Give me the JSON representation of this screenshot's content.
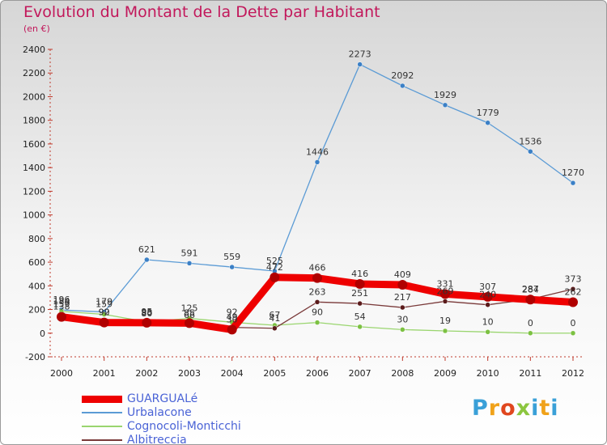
{
  "title": "Evolution du Montant de la Dette par Habitant",
  "subtitle": "(en €)",
  "brand": {
    "letters": [
      "P",
      "r",
      "o",
      "x",
      "i",
      "t",
      "i"
    ],
    "colors": [
      "#3aa0d8",
      "#f0a21a",
      "#e0471f",
      "#8cc63f",
      "#3aa0d8",
      "#f0a21a",
      "#3aa0d8"
    ]
  },
  "chart_data": {
    "type": "line",
    "title": "Evolution du Montant de la Dette par Habitant",
    "ylabel": "(en €)",
    "xlabel": "",
    "x": [
      "2000",
      "2001",
      "2002",
      "2003",
      "2004",
      "2005",
      "2006",
      "2007",
      "2008",
      "2009",
      "2010",
      "2011",
      "2012"
    ],
    "ylim": [
      -200,
      2400
    ],
    "yticks": [
      "-200",
      "0",
      "200",
      "400",
      "600",
      "800",
      "1000",
      "1200",
      "1400",
      "1600",
      "1800",
      "2000",
      "2200",
      "2400"
    ],
    "grid": false,
    "legend_position": "bottom-left",
    "series": [
      {
        "name": "Urbalacone",
        "color": "#5b9bd5",
        "marker": "#3b80c6",
        "width": 1.3,
        "values": [
          196,
          179,
          621,
          591,
          559,
          525,
          1446,
          2273,
          2092,
          1929,
          1779,
          1536,
          1270
        ],
        "labels": [
          "196",
          "179",
          "621",
          "591",
          "559",
          "525",
          "1446",
          "2273",
          "2092",
          "1929",
          "1779",
          "1536",
          "1270"
        ]
      },
      {
        "name": "Cognocoli-Monticchi",
        "color": "#9ad56f",
        "marker": "#7cc142",
        "width": 1.3,
        "values": [
          184,
          159,
          95,
          125,
          92,
          67,
          90,
          54,
          30,
          19,
          10,
          0,
          0
        ],
        "labels": [
          "184",
          "159",
          "95",
          "125",
          "92",
          "67",
          "90",
          "54",
          "30",
          "19",
          "10",
          "0",
          "0"
        ]
      },
      {
        "name": "Albitreccia",
        "color": "#7a3a3a",
        "marker": "#5a1a1a",
        "width": 1.3,
        "values": [
          159,
          92,
          80,
          66,
          49,
          41,
          263,
          251,
          217,
          269,
          240,
          287,
          373
        ],
        "labels": [
          "159",
          "92",
          "80",
          "66",
          "49",
          "41",
          "263",
          "251",
          "217",
          "269",
          "240",
          "287",
          "373"
        ]
      },
      {
        "name": "GUARGUALé",
        "color": "#ee0000",
        "marker": "#b00000",
        "width": 9,
        "values": [
          138,
          90,
          88,
          85,
          30,
          472,
          466,
          416,
          409,
          331,
          307,
          284,
          262
        ],
        "labels": [
          "138",
          "90",
          "88",
          "85",
          "30",
          "472",
          "466",
          "416",
          "409",
          "331",
          "307",
          "284",
          "262"
        ]
      }
    ],
    "legend_order": [
      "GUARGUALé",
      "Urbalacone",
      "Cognocoli-Monticchi",
      "Albitreccia"
    ]
  }
}
